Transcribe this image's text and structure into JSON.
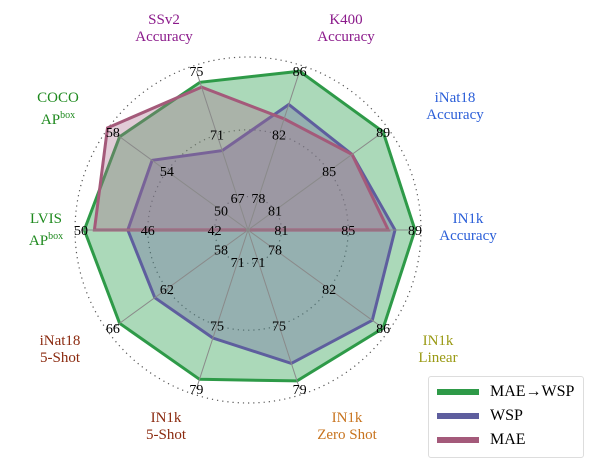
{
  "chart_data": {
    "type": "radar",
    "title": "",
    "axes": [
      {
        "name": "IN1k Accuracy",
        "label_lines": [
          "IN1k",
          "Accuracy"
        ],
        "ticks": [
          81,
          85,
          89
        ],
        "color": "#2a5ed8"
      },
      {
        "name": "iNat18 Accuracy",
        "label_lines": [
          "iNat18",
          "Accuracy"
        ],
        "ticks": [
          81,
          85,
          89
        ],
        "color": "#2a5ed8"
      },
      {
        "name": "K400 Accuracy",
        "label_lines": [
          "K400",
          "Accuracy"
        ],
        "ticks": [
          78,
          82,
          86
        ],
        "color": "#8b1a8b"
      },
      {
        "name": "SSv2 Accuracy",
        "label_lines": [
          "SSv2",
          "Accuracy"
        ],
        "ticks": [
          67,
          71,
          75
        ],
        "color": "#8b1a8b"
      },
      {
        "name": "COCO AP^box",
        "label_lines": [
          "COCO",
          "AP|box"
        ],
        "ticks": [
          50,
          54,
          58
        ],
        "color": "#1f8a1f"
      },
      {
        "name": "LVIS AP^box",
        "label_lines": [
          "LVIS",
          "AP|box"
        ],
        "ticks": [
          42,
          46,
          50
        ],
        "color": "#1f8a1f"
      },
      {
        "name": "iNat18 5-Shot",
        "label_lines": [
          "iNat18",
          "5-Shot"
        ],
        "ticks": [
          58,
          62,
          66
        ],
        "color": "#8b2a0f"
      },
      {
        "name": "IN1k 5-Shot",
        "label_lines": [
          "IN1k",
          "5-Shot"
        ],
        "ticks": [
          71,
          75,
          79
        ],
        "color": "#8b2a0f"
      },
      {
        "name": "IN1k Zero Shot",
        "label_lines": [
          "IN1k",
          "Zero Shot"
        ],
        "ticks": [
          71,
          75,
          79
        ],
        "color": "#c8741f"
      },
      {
        "name": "IN1k Linear",
        "label_lines": [
          "IN1k",
          "Linear"
        ],
        "ticks": [
          78,
          82,
          86
        ],
        "color": "#9a9a14"
      }
    ],
    "series": [
      {
        "name": "MAE→WSP",
        "color": "#2e9a48",
        "fill": "rgba(46,160,80,0.40)",
        "values": [
          89.0,
          89.0,
          86.0,
          74.3,
          57.5,
          49.8,
          65.5,
          78.4,
          78.5,
          86.0
        ]
      },
      {
        "name": "WSP",
        "color": "#5e5e9e",
        "fill": "rgba(110,100,160,0.35)",
        "values": [
          87.8,
          86.7,
          83.9,
          70.0,
          55.1,
          47.2,
          62.9,
          75.8,
          77.4,
          85.2
        ]
      },
      {
        "name": "MAE",
        "color": "#a45a7a",
        "fill": "rgba(170,110,140,0.35)",
        "values": [
          87.4,
          86.7,
          83.0,
          74.0,
          58.4,
          49.2,
          null,
          null,
          null,
          null
        ]
      }
    ],
    "grid": "dotted rings at each tick level",
    "legend_position": "lower right"
  },
  "legend": {
    "items": [
      {
        "label": "MAE→WSP",
        "color": "#2e9a48"
      },
      {
        "label": "WSP",
        "color": "#5e5e9e"
      },
      {
        "label": "MAE",
        "color": "#a45a7a"
      }
    ]
  },
  "labels": {
    "in1k_acc": [
      "IN1k",
      "Accuracy"
    ],
    "inat_acc": [
      "iNat18",
      "Accuracy"
    ],
    "k400": [
      "K400",
      "Accuracy"
    ],
    "ssv2": [
      "SSv2",
      "Accuracy"
    ],
    "coco": [
      "COCO",
      "AP",
      "box"
    ],
    "lvis": [
      "LVIS",
      "AP",
      "box"
    ],
    "inat_5": [
      "iNat18",
      "5-Shot"
    ],
    "in1k_5": [
      "IN1k",
      "5-Shot"
    ],
    "in1k_zs": [
      "IN1k",
      "Zero Shot"
    ],
    "in1k_lin": [
      "IN1k",
      "Linear"
    ]
  }
}
